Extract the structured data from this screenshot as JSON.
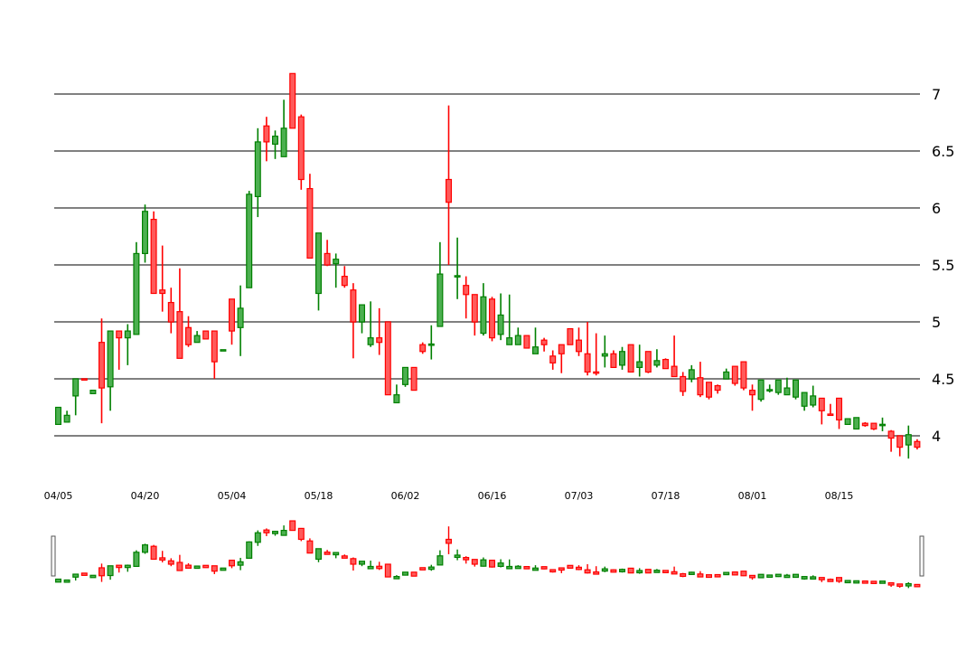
{
  "chart_data": {
    "type": "candlestick",
    "title": "",
    "xlabel": "",
    "ylabel": "",
    "ylim": [
      3.8,
      7.2
    ],
    "grid": true,
    "yticks": [
      "4",
      "4.5",
      "5",
      "5.5",
      "6",
      "6.5",
      "7"
    ],
    "xticks": [
      "04/05",
      "04/20",
      "05/04",
      "05/18",
      "06/02",
      "06/16",
      "07/03",
      "07/18",
      "08/01",
      "08/15"
    ],
    "xtick_index": [
      0,
      10,
      20,
      30,
      40,
      50,
      60,
      70,
      80,
      90
    ],
    "colors": {
      "up": "#008000",
      "down": "#ff0000",
      "up_fill": "#4caf50",
      "down_fill": "#ff5a5a",
      "grid": "#808080"
    },
    "ohlc": [
      [
        4.1,
        4.25,
        4.1,
        4.25
      ],
      [
        4.12,
        4.22,
        4.12,
        4.18
      ],
      [
        4.35,
        4.5,
        4.18,
        4.5
      ],
      [
        4.5,
        4.5,
        4.49,
        4.49
      ],
      [
        4.37,
        4.4,
        4.37,
        4.4
      ],
      [
        4.82,
        5.03,
        4.11,
        4.42
      ],
      [
        4.43,
        4.92,
        4.22,
        4.92
      ],
      [
        4.92,
        4.92,
        4.58,
        4.86
      ],
      [
        4.86,
        4.98,
        4.62,
        4.92
      ],
      [
        4.89,
        5.7,
        4.89,
        5.6
      ],
      [
        5.6,
        6.03,
        5.52,
        5.97
      ],
      [
        5.9,
        5.97,
        5.25,
        5.25
      ],
      [
        5.28,
        5.67,
        5.09,
        5.25
      ],
      [
        5.17,
        5.3,
        4.9,
        5.0
      ],
      [
        5.09,
        5.47,
        4.68,
        4.68
      ],
      [
        4.95,
        5.05,
        4.78,
        4.8
      ],
      [
        4.82,
        4.92,
        4.82,
        4.88
      ],
      [
        4.92,
        4.92,
        4.85,
        4.85
      ],
      [
        4.92,
        4.92,
        4.5,
        4.65
      ],
      [
        4.75,
        4.75,
        4.75,
        4.75
      ],
      [
        5.2,
        5.2,
        4.8,
        4.92
      ],
      [
        4.95,
        5.32,
        4.7,
        5.12
      ],
      [
        5.3,
        6.15,
        5.3,
        6.12
      ],
      [
        6.1,
        6.7,
        5.92,
        6.58
      ],
      [
        6.72,
        6.8,
        6.41,
        6.58
      ],
      [
        6.56,
        6.68,
        6.43,
        6.63
      ],
      [
        6.45,
        6.95,
        6.45,
        6.7
      ],
      [
        7.18,
        7.18,
        6.7,
        6.7
      ],
      [
        6.8,
        6.82,
        6.16,
        6.25
      ],
      [
        6.17,
        6.3,
        5.56,
        5.56
      ],
      [
        5.25,
        5.78,
        5.1,
        5.78
      ],
      [
        5.6,
        5.72,
        5.49,
        5.5
      ],
      [
        5.51,
        5.6,
        5.3,
        5.55
      ],
      [
        5.4,
        5.49,
        5.3,
        5.32
      ],
      [
        5.28,
        5.34,
        4.68,
        5.0
      ],
      [
        5.0,
        5.15,
        4.9,
        5.15
      ],
      [
        4.8,
        5.18,
        4.78,
        4.86
      ],
      [
        4.86,
        5.12,
        4.71,
        4.82
      ],
      [
        5.0,
        5.0,
        4.36,
        4.36
      ],
      [
        4.29,
        4.45,
        4.29,
        4.36
      ],
      [
        4.45,
        4.6,
        4.43,
        4.6
      ],
      [
        4.6,
        4.6,
        4.4,
        4.4
      ],
      [
        4.8,
        4.82,
        4.72,
        4.74
      ],
      [
        4.8,
        4.97,
        4.67,
        4.8
      ],
      [
        4.96,
        5.7,
        4.96,
        5.42
      ],
      [
        6.25,
        6.9,
        5.5,
        6.05
      ],
      [
        5.4,
        5.74,
        5.2,
        5.4
      ],
      [
        5.32,
        5.4,
        5.03,
        5.24
      ],
      [
        5.24,
        5.24,
        4.88,
        5.0
      ],
      [
        4.9,
        5.34,
        4.88,
        5.22
      ],
      [
        5.2,
        5.22,
        4.83,
        4.86
      ],
      [
        4.89,
        5.25,
        4.84,
        5.06
      ],
      [
        4.8,
        5.24,
        4.8,
        4.86
      ],
      [
        4.8,
        4.95,
        4.8,
        4.88
      ],
      [
        4.88,
        4.88,
        4.77,
        4.77
      ],
      [
        4.72,
        4.95,
        4.72,
        4.78
      ],
      [
        4.84,
        4.86,
        4.74,
        4.8
      ],
      [
        4.7,
        4.75,
        4.58,
        4.64
      ],
      [
        4.8,
        4.8,
        4.55,
        4.72
      ],
      [
        4.94,
        4.94,
        4.8,
        4.8
      ],
      [
        4.84,
        4.95,
        4.7,
        4.74
      ],
      [
        4.72,
        5.0,
        4.53,
        4.56
      ],
      [
        4.56,
        4.9,
        4.53,
        4.55
      ],
      [
        4.7,
        4.88,
        4.6,
        4.72
      ],
      [
        4.72,
        4.75,
        4.6,
        4.6
      ],
      [
        4.62,
        4.78,
        4.58,
        4.74
      ],
      [
        4.8,
        4.8,
        4.56,
        4.56
      ],
      [
        4.6,
        4.8,
        4.52,
        4.65
      ],
      [
        4.74,
        4.74,
        4.55,
        4.56
      ],
      [
        4.62,
        4.76,
        4.6,
        4.66
      ],
      [
        4.67,
        4.68,
        4.59,
        4.59
      ],
      [
        4.61,
        4.88,
        4.52,
        4.52
      ],
      [
        4.52,
        4.56,
        4.35,
        4.39
      ],
      [
        4.5,
        4.62,
        4.47,
        4.58
      ],
      [
        4.51,
        4.65,
        4.34,
        4.36
      ],
      [
        4.47,
        4.47,
        4.32,
        4.34
      ],
      [
        4.44,
        4.45,
        4.37,
        4.4
      ],
      [
        4.5,
        4.59,
        4.5,
        4.56
      ],
      [
        4.61,
        4.61,
        4.44,
        4.46
      ],
      [
        4.65,
        4.65,
        4.4,
        4.42
      ],
      [
        4.4,
        4.45,
        4.22,
        4.36
      ],
      [
        4.32,
        4.49,
        4.3,
        4.49
      ],
      [
        4.4,
        4.45,
        4.38,
        4.4
      ],
      [
        4.38,
        4.49,
        4.36,
        4.49
      ],
      [
        4.36,
        4.51,
        4.36,
        4.42
      ],
      [
        4.34,
        4.49,
        4.32,
        4.49
      ],
      [
        4.26,
        4.38,
        4.22,
        4.38
      ],
      [
        4.27,
        4.44,
        4.25,
        4.35
      ],
      [
        4.33,
        4.33,
        4.1,
        4.22
      ],
      [
        4.19,
        4.28,
        4.18,
        4.18
      ],
      [
        4.33,
        4.33,
        4.06,
        4.14
      ],
      [
        4.1,
        4.15,
        4.1,
        4.15
      ],
      [
        4.06,
        4.16,
        4.06,
        4.16
      ],
      [
        4.11,
        4.12,
        4.08,
        4.09
      ],
      [
        4.11,
        4.11,
        4.05,
        4.06
      ],
      [
        4.09,
        4.16,
        4.04,
        4.1
      ],
      [
        4.04,
        4.05,
        3.86,
        3.98
      ],
      [
        4.0,
        4.0,
        3.82,
        3.9
      ],
      [
        3.92,
        4.09,
        3.8,
        4.01
      ],
      [
        3.95,
        3.97,
        3.88,
        3.9
      ]
    ]
  }
}
